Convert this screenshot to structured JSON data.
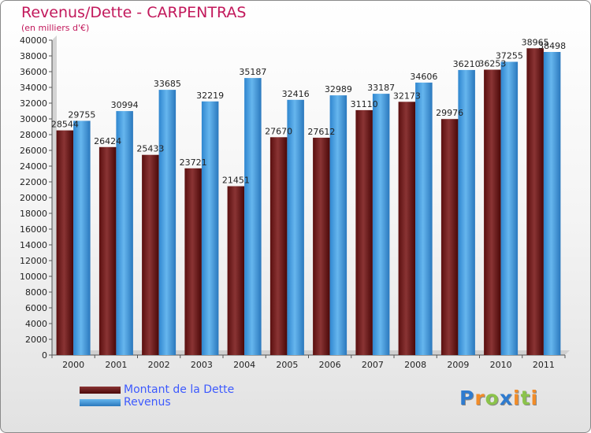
{
  "title": "Revenus/Dette - CARPENTRAS",
  "subtitle": "(en milliers d'€)",
  "logo": "Proxiti",
  "logo_letters": [
    "P",
    "r",
    "o",
    "x",
    "i",
    "t",
    "i"
  ],
  "logo_colors": [
    "#2e7bcf",
    "#f28c28",
    "#8bc34a",
    "#2e7bcf",
    "#f28c28",
    "#8bc34a",
    "#f28c28"
  ],
  "chart_data": {
    "type": "bar",
    "title": "Revenus/Dette - CARPENTRAS",
    "ylabel": "(en milliers d'€)",
    "xlabel": "",
    "ylim": [
      0,
      40000
    ],
    "ytick_step": 2000,
    "grid": false,
    "legend_position": "bottom-left",
    "categories": [
      "2000",
      "2001",
      "2002",
      "2003",
      "2004",
      "2005",
      "2006",
      "2007",
      "2008",
      "2009",
      "2010",
      "2011"
    ],
    "series": [
      {
        "name": "Montant de la Dette",
        "color": "#7a1f1f",
        "values": [
          28544,
          26424,
          25433,
          23721,
          21451,
          27670,
          27612,
          31110,
          32173,
          29976,
          36253,
          38965
        ],
        "labels": [
          "28544",
          "26424",
          "25433",
          "23721",
          "21451",
          "27670",
          "27612",
          "31110",
          "32173",
          "29976",
          "36253",
          "38965"
        ]
      },
      {
        "name": "Revenus",
        "color": "#4ba3e3",
        "values": [
          29755,
          30994,
          33685,
          32219,
          35187,
          32416,
          32989,
          33187,
          34606,
          36210,
          37255,
          38498
        ],
        "labels": [
          "29755",
          "30994",
          "33685",
          "32219",
          "35187",
          "32416",
          "32989",
          "33187",
          "34606",
          "36210",
          "37255",
          "38498"
        ]
      }
    ]
  }
}
